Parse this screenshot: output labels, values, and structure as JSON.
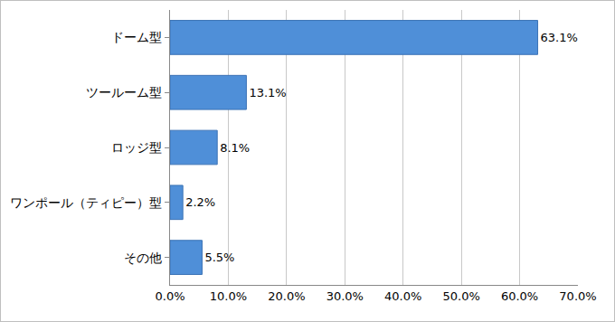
{
  "chart_data": {
    "type": "bar",
    "orientation": "horizontal",
    "categories": [
      "ドーム型",
      "ツールーム型",
      "ロッジ型",
      "ワンポール（ティピー）型",
      "その他"
    ],
    "values": [
      63.1,
      13.1,
      8.1,
      2.2,
      5.5
    ],
    "value_labels": [
      "63.1%",
      "13.1%",
      "8.1%",
      "2.2%",
      "5.5%"
    ],
    "color": "#4f8fd8",
    "xlim": [
      0,
      70
    ],
    "xticks": [
      {
        "value": 0,
        "label": "0.0%"
      },
      {
        "value": 10,
        "label": "10.0%"
      },
      {
        "value": 20,
        "label": "20.0%"
      },
      {
        "value": 30,
        "label": "30.0%"
      },
      {
        "value": 40,
        "label": "40.0%"
      },
      {
        "value": 50,
        "label": "50.0%"
      },
      {
        "value": 60,
        "label": "60.0%"
      },
      {
        "value": 70,
        "label": "70.0%"
      }
    ],
    "grid": true,
    "data_labels": true
  }
}
